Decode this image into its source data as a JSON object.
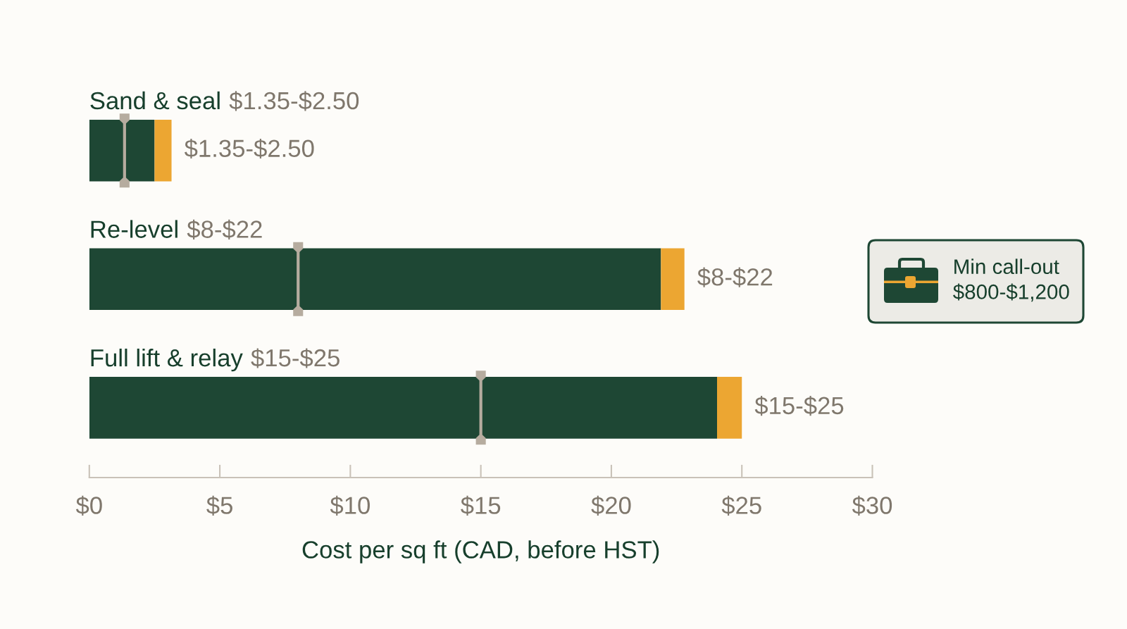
{
  "chart_data": {
    "type": "bar",
    "orientation": "horizontal",
    "stacked": true,
    "categories": [
      "Sand & seal",
      "Re-level",
      "Full lift & relay"
    ],
    "series": [
      {
        "color": "#1e4734",
        "values": [
          2.5,
          21.9,
          24.05
        ]
      },
      {
        "color": "#eca632",
        "values": [
          0.65,
          0.9,
          0.95
        ],
        "value_labels": [
          "$1.35-$2.50",
          "$8-$22",
          "$15-$25"
        ]
      },
      {
        "type": "scatter",
        "color": "#b6ac9f",
        "values": [
          1.35,
          8,
          15
        ]
      }
    ],
    "xlim": [
      0,
      30
    ],
    "xticks": [
      {
        "value": 0,
        "label": "$0"
      },
      {
        "value": 5,
        "label": "$5"
      },
      {
        "value": 10,
        "label": "$10"
      },
      {
        "value": 15,
        "label": "$15"
      },
      {
        "value": 20,
        "label": "$20"
      },
      {
        "value": 25,
        "label": "$25"
      },
      {
        "value": 30,
        "label": "$30"
      }
    ],
    "xlabel": "Cost per sq ft (CAD, before HST)",
    "annotations": [
      "Min call-out\n$800-$1,200"
    ]
  }
}
